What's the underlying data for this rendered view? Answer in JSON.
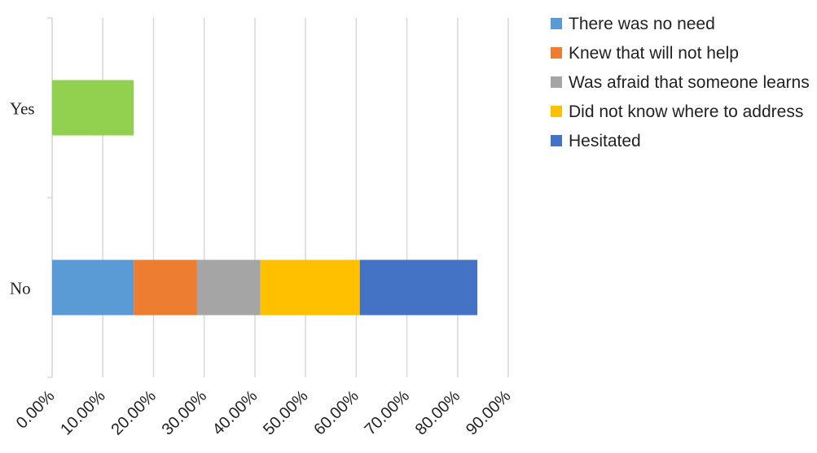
{
  "chart_data": {
    "type": "bar",
    "orientation": "horizontal",
    "stacked": true,
    "categories": [
      "Yes",
      "No"
    ],
    "series": [
      {
        "name": "There was no need",
        "color": "#5B9BD5",
        "values": [
          0,
          16.1
        ]
      },
      {
        "name": "Knew that will not help",
        "color": "#ED7D31",
        "values": [
          0,
          12.5
        ]
      },
      {
        "name": "Was afraid that someone learns",
        "color": "#A5A5A5",
        "values": [
          0,
          12.5
        ]
      },
      {
        "name": "Did not know where to address",
        "color": "#FFC000",
        "values": [
          0,
          19.6
        ]
      },
      {
        "name": "Hesitated",
        "color": "#4472C4",
        "values": [
          0,
          23.2
        ]
      },
      {
        "name": "",
        "color": "#92D050",
        "values": [
          16.1,
          0
        ]
      }
    ],
    "xlim": [
      0,
      90
    ],
    "x_ticks": [
      "0.00%",
      "10.00%",
      "20.00%",
      "30.00%",
      "40.00%",
      "50.00%",
      "60.00%",
      "70.00%",
      "80.00%",
      "90.00%"
    ],
    "grid": true,
    "legend_position": "right"
  }
}
